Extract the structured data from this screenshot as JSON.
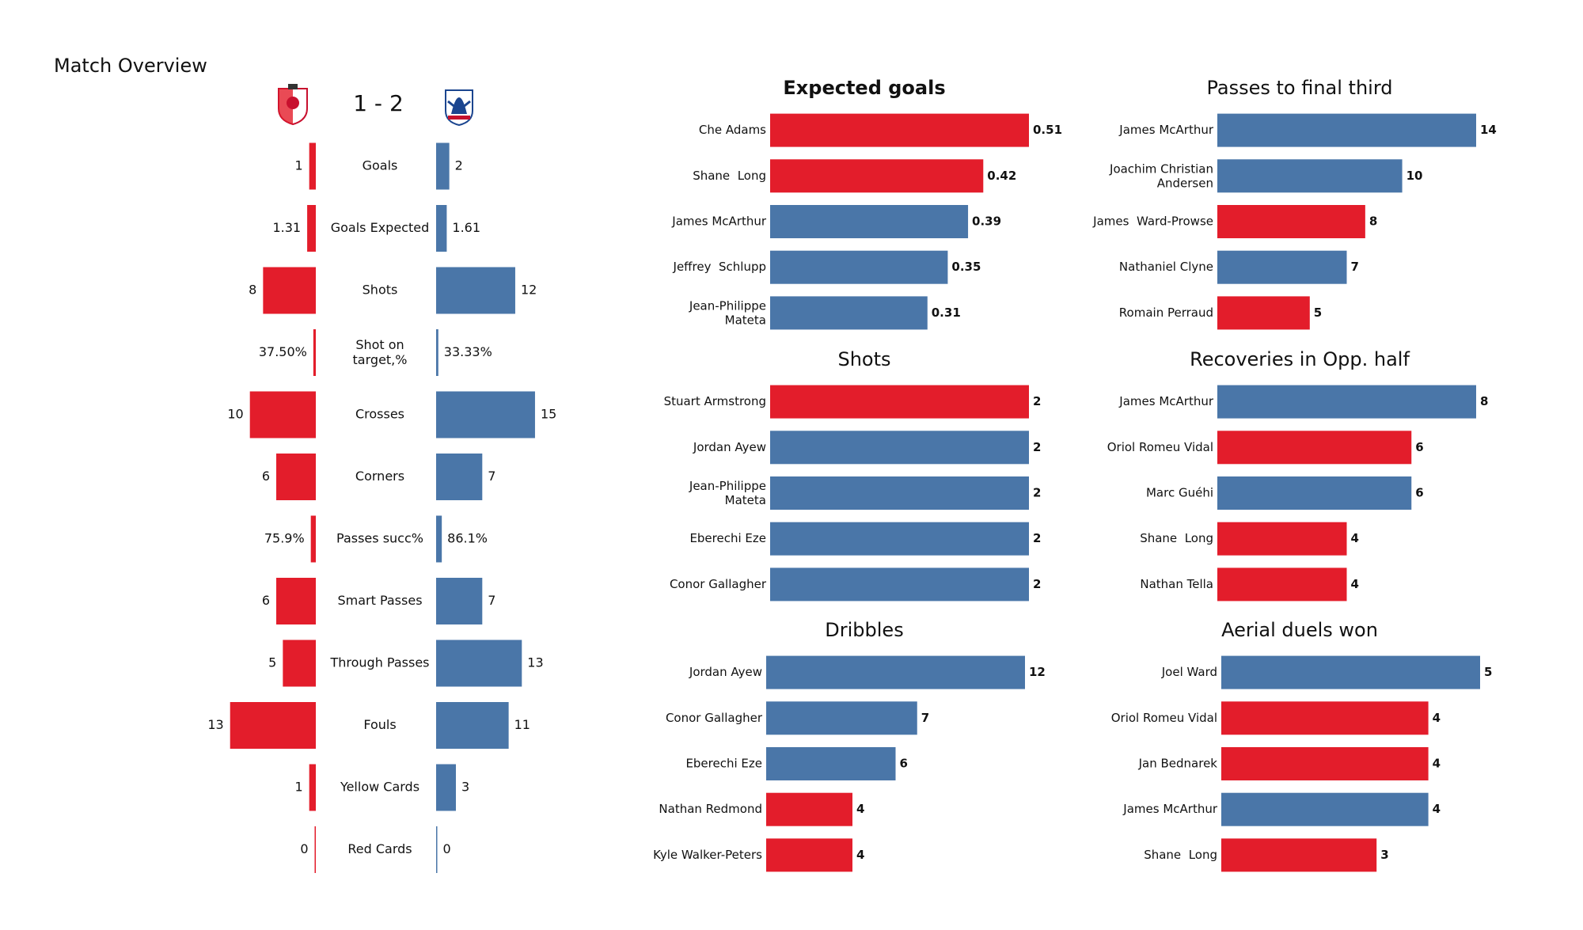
{
  "chart_data": [
    {
      "type": "diverging-bar",
      "title": "Match Overview",
      "score": "1 - 2",
      "categories": [
        "Goals",
        "Goals Expected",
        "Shots",
        "Shot on target,%",
        "Crosses",
        "Corners",
        "Passes succ%",
        "Smart Passes",
        "Through Passes",
        "Fouls",
        "Yellow Cards",
        "Red Cards"
      ],
      "series": [
        {
          "color": "#e31d2b",
          "values": [
            1,
            1.31,
            8,
            37.5,
            10,
            6,
            75.9,
            6,
            5,
            13,
            1,
            0
          ],
          "value_labels": [
            "1",
            "1.31",
            "8",
            "37.50%",
            "10",
            "6",
            "75.9%",
            "6",
            "5",
            "13",
            "1",
            "0"
          ]
        },
        {
          "color": "#4a76a8",
          "values": [
            2,
            1.61,
            12,
            33.33,
            15,
            7,
            86.1,
            7,
            13,
            11,
            3,
            0
          ],
          "value_labels": [
            "2",
            "1.61",
            "12",
            "33.33%",
            "15",
            "7",
            "86.1%",
            "7",
            "13",
            "11",
            "3",
            "0"
          ]
        }
      ]
    },
    {
      "type": "bar",
      "title": "Expected goals",
      "title_bold": true,
      "categories": [
        "Che Adams",
        "Shane  Long",
        "James McArthur",
        "Jeffrey  Schlupp",
        "Jean-Philippe Mateta"
      ],
      "values": [
        0.51,
        0.42,
        0.39,
        0.35,
        0.31
      ],
      "colors": [
        "#e31d2b",
        "#e31d2b",
        "#4a76a8",
        "#4a76a8",
        "#4a76a8"
      ]
    },
    {
      "type": "bar",
      "title": "Passes to final third",
      "categories": [
        "James McArthur",
        "Joachim Christian Andersen",
        "James  Ward-Prowse",
        "Nathaniel Clyne",
        "Romain Perraud"
      ],
      "values": [
        14,
        10,
        8,
        7,
        5
      ],
      "colors": [
        "#4a76a8",
        "#4a76a8",
        "#e31d2b",
        "#4a76a8",
        "#e31d2b"
      ]
    },
    {
      "type": "bar",
      "title": "Shots",
      "categories": [
        "Stuart Armstrong",
        "Jordan Ayew",
        "Jean-Philippe Mateta",
        "Eberechi Eze",
        "Conor Gallagher"
      ],
      "values": [
        2,
        2,
        2,
        2,
        2
      ],
      "colors": [
        "#e31d2b",
        "#4a76a8",
        "#4a76a8",
        "#4a76a8",
        "#4a76a8"
      ]
    },
    {
      "type": "bar",
      "title": "Recoveries in Opp. half",
      "categories": [
        "James McArthur",
        "Oriol Romeu Vidal",
        "Marc Guéhi",
        "Shane  Long",
        "Nathan Tella"
      ],
      "values": [
        8,
        6,
        6,
        4,
        4
      ],
      "colors": [
        "#4a76a8",
        "#e31d2b",
        "#4a76a8",
        "#e31d2b",
        "#e31d2b"
      ]
    },
    {
      "type": "bar",
      "title": "Dribbles",
      "categories": [
        "Jordan Ayew",
        "Conor Gallagher",
        "Eberechi Eze",
        "Nathan Redmond",
        "Kyle Walker-Peters"
      ],
      "values": [
        12,
        7,
        6,
        4,
        4
      ],
      "colors": [
        "#4a76a8",
        "#4a76a8",
        "#4a76a8",
        "#e31d2b",
        "#e31d2b"
      ]
    },
    {
      "type": "bar",
      "title": "Aerial duels won",
      "categories": [
        "Joel Ward",
        "Oriol Romeu Vidal",
        "Jan Bednarek",
        "James McArthur",
        "Shane  Long"
      ],
      "values": [
        5,
        4,
        4,
        4,
        3
      ],
      "colors": [
        "#4a76a8",
        "#e31d2b",
        "#e31d2b",
        "#4a76a8",
        "#e31d2b"
      ]
    }
  ]
}
